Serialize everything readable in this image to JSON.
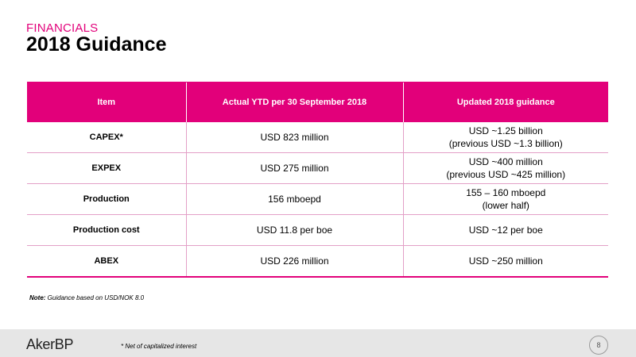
{
  "header": {
    "kicker": "FINANCIALS",
    "title": "2018 Guidance"
  },
  "table": {
    "columns": [
      "Item",
      "Actual YTD per 30 September 2018",
      "Updated 2018 guidance"
    ],
    "rows": [
      {
        "item": "CAPEX*",
        "actual": "USD 823 million",
        "guidance": [
          "USD ~1.25 billion",
          "(previous USD ~1.3 billion)"
        ]
      },
      {
        "item": "EXPEX",
        "actual": "USD 275 million",
        "guidance": [
          "USD ~400 million",
          "(previous USD ~425 million)"
        ]
      },
      {
        "item": "Production",
        "actual": "156 mboepd",
        "guidance": [
          "155 – 160 mboepd",
          "(lower half)"
        ]
      },
      {
        "item": "Production cost",
        "actual": "USD 11.8 per boe",
        "guidance": [
          "USD ~12 per boe"
        ]
      },
      {
        "item": "ABEX",
        "actual": "USD 226 million",
        "guidance": [
          "USD ~250 million"
        ]
      }
    ]
  },
  "note": {
    "label": "Note:",
    "text": " Guidance based on USD/NOK 8.0"
  },
  "footer": {
    "logo": "AkerBP",
    "footnote": "* Net of capitalized interest",
    "page": "8"
  },
  "colors": {
    "accent": "#e2007a",
    "footer_bg": "#e6e6e6"
  }
}
